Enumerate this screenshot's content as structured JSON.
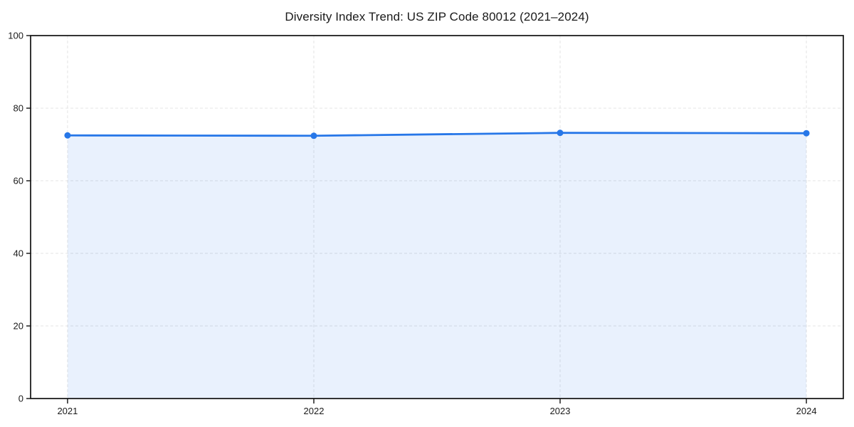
{
  "chart_data": {
    "type": "line",
    "title": "Diversity Index Trend: US ZIP Code 80012 (2021–2024)",
    "categories": [
      "2021",
      "2022",
      "2023",
      "2024"
    ],
    "series": [
      {
        "name": "Diversity Index",
        "values": [
          72.5,
          72.4,
          73.2,
          73.1
        ]
      }
    ],
    "xlabel": "",
    "ylabel": "",
    "ylim": [
      0,
      100
    ],
    "yticks": [
      0,
      20,
      40,
      60,
      80,
      100
    ],
    "grid": true,
    "grid_style": "dashed",
    "legend": false,
    "area_fill": true,
    "marker": "circle",
    "colors": {
      "line": "#2777E8",
      "marker": "#2777E8",
      "fill": "#2777E8",
      "fill_opacity": 0.1,
      "grid": "#E4E4E4",
      "axis": "#111111",
      "text": "#1A1A1A",
      "background": "#FFFFFF"
    }
  }
}
